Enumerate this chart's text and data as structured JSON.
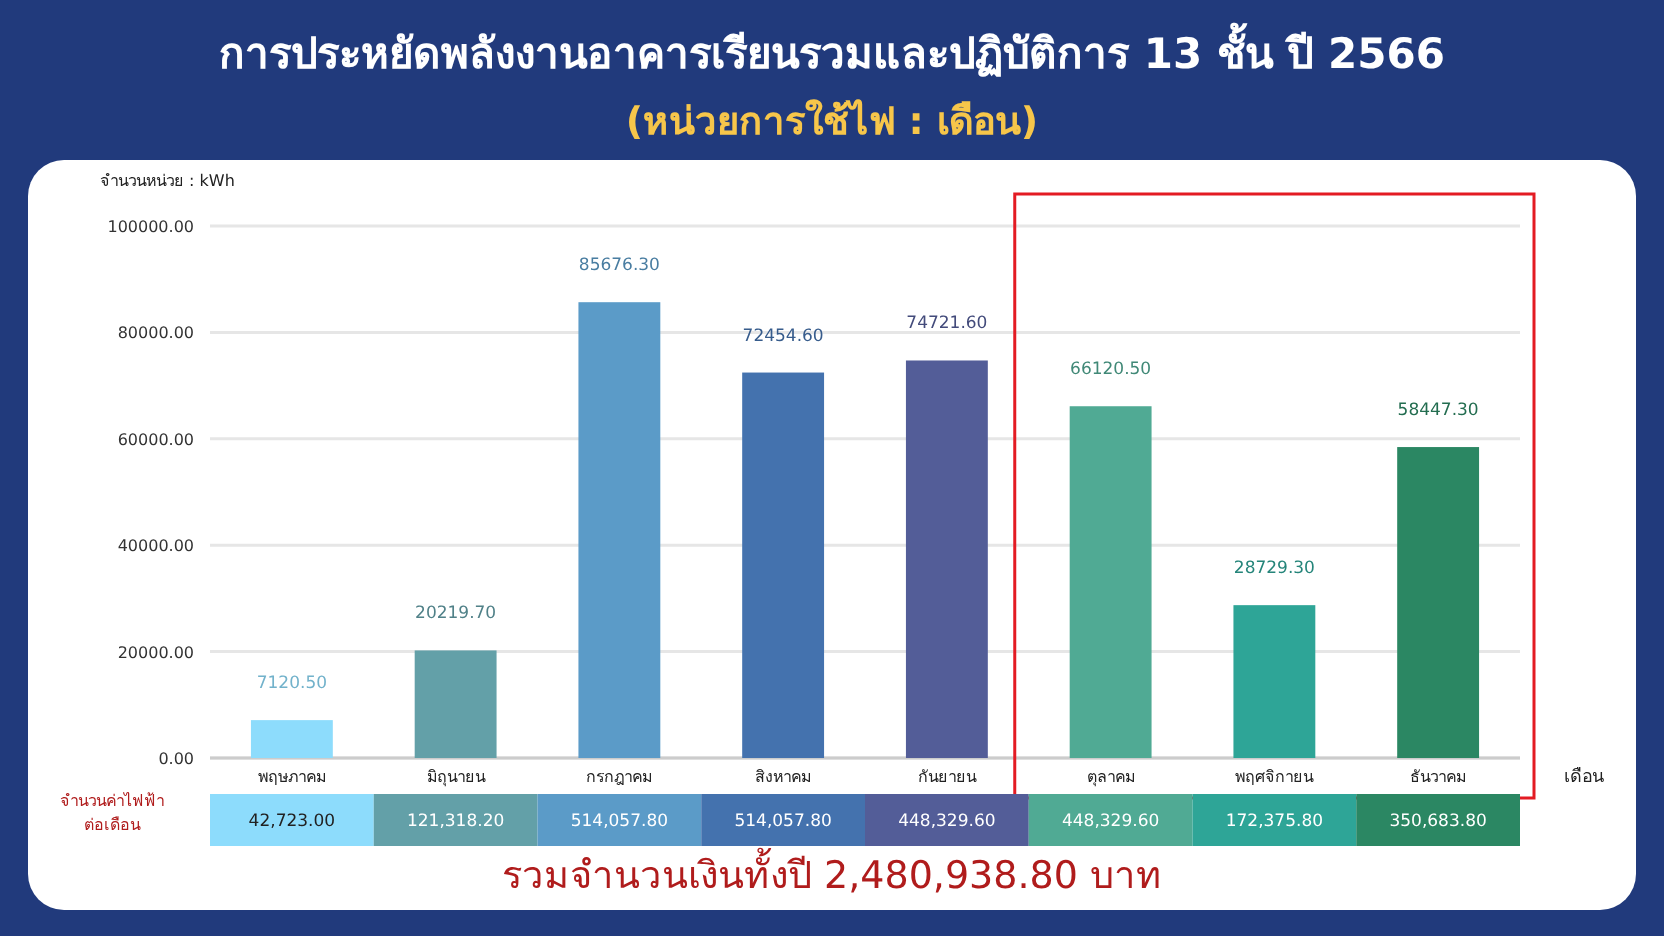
{
  "chart_data": {
    "type": "bar",
    "title": "การประหยัดพลังงานอาคารเรียนรวมและปฏิบัติการ 13 ชั้น ปี 2566",
    "subtitle": "(หน่วยการใช้ไฟ : เดือน)",
    "ylabel": "จำนวนหน่วย : kWh",
    "xlabel": "เดือน",
    "categories": [
      "พฤษภาคม",
      "มิถุนายน",
      "กรกฎาคม",
      "สิงหาคม",
      "กันยายน",
      "ตุลาคม",
      "พฤศจิกายน",
      "ธันวาคม"
    ],
    "values": [
      7120.5,
      20219.7,
      85676.3,
      72454.6,
      74721.6,
      66120.5,
      28729.3,
      58447.3
    ],
    "colors": [
      "#8ddcfc",
      "#63a0a8",
      "#5b9bc8",
      "#4472ae",
      "#535d98",
      "#50aa94",
      "#2ea597",
      "#2b8763"
    ],
    "value_labels": [
      "7120.50",
      "20219.70",
      "85676.30",
      "72454.60",
      "74721.60",
      "66120.50",
      "28729.30",
      "58447.30"
    ],
    "ylim": [
      0,
      100000
    ],
    "yticks": [
      {
        "value": 0,
        "label": "0.00"
      },
      {
        "value": 20000,
        "label": "20000.00"
      },
      {
        "value": 40000,
        "label": "40000.00"
      },
      {
        "value": 60000,
        "label": "60000.00"
      },
      {
        "value": 80000,
        "label": "80000.00"
      },
      {
        "value": 100000,
        "label": "100000.00"
      }
    ],
    "grid": "y",
    "annotations": [
      "จำนวนค่าไฟฟ้าต่อเดือน",
      "42,723.00",
      "121,318.20",
      "514,057.80",
      "514,057.80",
      "448,329.60",
      "448,329.60",
      "172,375.80",
      "350,683.80",
      "รวมจำนวนเงินทั้งปี 2,480,938.80  บาท"
    ]
  }
}
